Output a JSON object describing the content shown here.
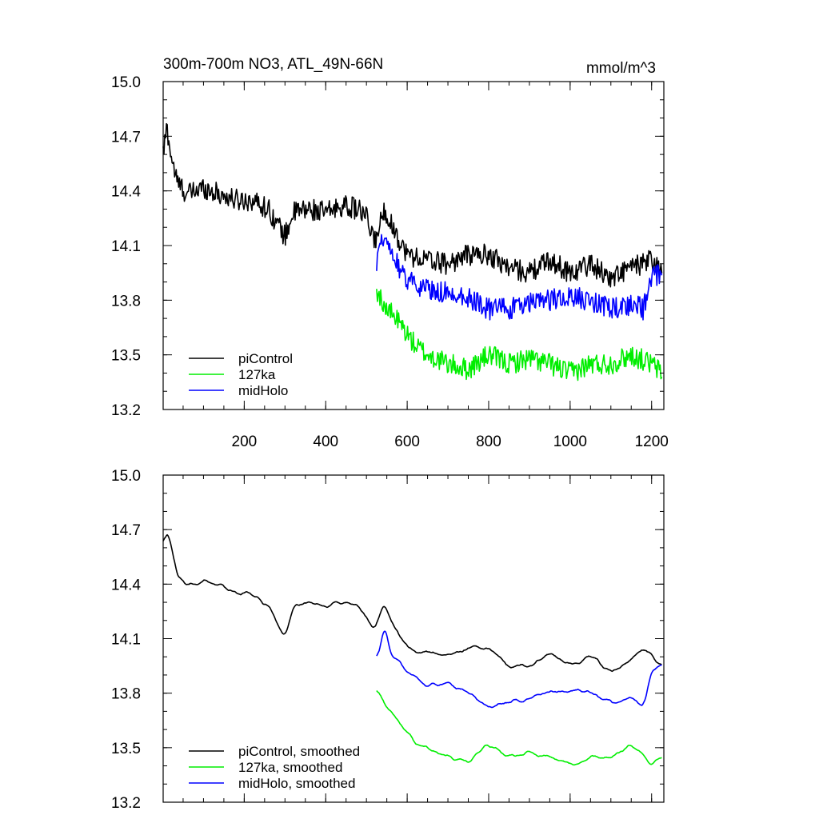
{
  "chart_data": [
    {
      "type": "line",
      "title": "300m-700m NO3, ATL_49N-66N",
      "units": "mmol/m^3",
      "xlim": [
        1,
        1230
      ],
      "ylim": [
        13.2,
        15.0
      ],
      "x_ticks": [
        200,
        400,
        600,
        800,
        1000,
        1200
      ],
      "y_ticks": [
        "15.0",
        "14.7",
        "14.4",
        "14.1",
        "13.8",
        "13.5",
        "13.2"
      ],
      "show_x_tick_labels": true,
      "legend_position": "bottom-left",
      "series": [
        {
          "name": "piControl",
          "color": "#000000",
          "smoothed": false,
          "anchors": [
            [
              1,
              14.6
            ],
            [
              10,
              14.75
            ],
            [
              20,
              14.6
            ],
            [
              35,
              14.45
            ],
            [
              60,
              14.38
            ],
            [
              100,
              14.42
            ],
            [
              140,
              14.38
            ],
            [
              180,
              14.35
            ],
            [
              220,
              14.35
            ],
            [
              260,
              14.3
            ],
            [
              300,
              14.15
            ],
            [
              320,
              14.28
            ],
            [
              360,
              14.3
            ],
            [
              400,
              14.28
            ],
            [
              440,
              14.32
            ],
            [
              480,
              14.3
            ],
            [
              500,
              14.25
            ],
            [
              520,
              14.12
            ],
            [
              545,
              14.3
            ],
            [
              560,
              14.22
            ],
            [
              600,
              14.05
            ],
            [
              650,
              14.02
            ],
            [
              700,
              14.0
            ],
            [
              750,
              14.05
            ],
            [
              800,
              14.05
            ],
            [
              850,
              13.98
            ],
            [
              900,
              13.95
            ],
            [
              950,
              14.02
            ],
            [
              1000,
              13.95
            ],
            [
              1050,
              14.0
            ],
            [
              1100,
              13.92
            ],
            [
              1150,
              13.98
            ],
            [
              1180,
              14.0
            ],
            [
              1200,
              14.02
            ],
            [
              1225,
              13.95
            ]
          ],
          "noise": 0.06
        },
        {
          "name": "127ka",
          "color": "#00ee00",
          "smoothed": false,
          "anchors": [
            [
              525,
              13.85
            ],
            [
              550,
              13.75
            ],
            [
              580,
              13.68
            ],
            [
              620,
              13.55
            ],
            [
              650,
              13.5
            ],
            [
              700,
              13.45
            ],
            [
              750,
              13.42
            ],
            [
              800,
              13.5
            ],
            [
              850,
              13.45
            ],
            [
              900,
              13.48
            ],
            [
              950,
              13.45
            ],
            [
              1000,
              13.4
            ],
            [
              1050,
              13.45
            ],
            [
              1100,
              13.45
            ],
            [
              1150,
              13.5
            ],
            [
              1200,
              13.45
            ],
            [
              1225,
              13.4
            ]
          ],
          "noise": 0.06
        },
        {
          "name": "midHolo",
          "color": "#0000ff",
          "smoothed": false,
          "anchors": [
            [
              525,
              13.98
            ],
            [
              545,
              14.2
            ],
            [
              560,
              14.05
            ],
            [
              600,
              13.92
            ],
            [
              650,
              13.85
            ],
            [
              700,
              13.85
            ],
            [
              750,
              13.82
            ],
            [
              800,
              13.75
            ],
            [
              850,
              13.75
            ],
            [
              900,
              13.78
            ],
            [
              950,
              13.8
            ],
            [
              1000,
              13.82
            ],
            [
              1050,
              13.8
            ],
            [
              1100,
              13.75
            ],
            [
              1150,
              13.78
            ],
            [
              1180,
              13.75
            ],
            [
              1200,
              13.92
            ],
            [
              1225,
              13.95
            ]
          ],
          "noise": 0.06
        }
      ]
    },
    {
      "type": "line",
      "title": "",
      "units": "",
      "xlim": [
        1,
        1230
      ],
      "ylim": [
        13.2,
        15.0
      ],
      "x_ticks": [
        200,
        400,
        600,
        800,
        1000,
        1200
      ],
      "y_ticks": [
        "15.0",
        "14.7",
        "14.4",
        "14.1",
        "13.8",
        "13.5",
        "13.2"
      ],
      "show_x_tick_labels": false,
      "legend_position": "bottom-left",
      "series": [
        {
          "name": "piControl, smoothed",
          "color": "#000000",
          "smoothed": true,
          "anchors": [
            [
              1,
              14.62
            ],
            [
              12,
              14.7
            ],
            [
              20,
              14.62
            ],
            [
              35,
              14.45
            ],
            [
              60,
              14.4
            ],
            [
              100,
              14.42
            ],
            [
              140,
              14.4
            ],
            [
              180,
              14.35
            ],
            [
              220,
              14.35
            ],
            [
              260,
              14.28
            ],
            [
              300,
              14.12
            ],
            [
              320,
              14.28
            ],
            [
              360,
              14.3
            ],
            [
              400,
              14.28
            ],
            [
              440,
              14.3
            ],
            [
              480,
              14.28
            ],
            [
              500,
              14.22
            ],
            [
              520,
              14.15
            ],
            [
              545,
              14.3
            ],
            [
              560,
              14.2
            ],
            [
              600,
              14.05
            ],
            [
              650,
              14.02
            ],
            [
              700,
              14.0
            ],
            [
              750,
              14.05
            ],
            [
              800,
              14.05
            ],
            [
              850,
              13.95
            ],
            [
              900,
              13.95
            ],
            [
              950,
              14.02
            ],
            [
              1000,
              13.95
            ],
            [
              1050,
              14.0
            ],
            [
              1100,
              13.92
            ],
            [
              1150,
              13.98
            ],
            [
              1180,
              14.05
            ],
            [
              1200,
              14.0
            ],
            [
              1225,
              13.95
            ]
          ],
          "noise": 0.03
        },
        {
          "name": "127ka, smoothed",
          "color": "#00ee00",
          "smoothed": true,
          "anchors": [
            [
              525,
              13.82
            ],
            [
              550,
              13.72
            ],
            [
              580,
              13.65
            ],
            [
              620,
              13.52
            ],
            [
              650,
              13.5
            ],
            [
              700,
              13.45
            ],
            [
              750,
              13.42
            ],
            [
              800,
              13.52
            ],
            [
              850,
              13.45
            ],
            [
              900,
              13.48
            ],
            [
              950,
              13.45
            ],
            [
              1000,
              13.4
            ],
            [
              1050,
              13.45
            ],
            [
              1100,
              13.45
            ],
            [
              1150,
              13.52
            ],
            [
              1200,
              13.42
            ],
            [
              1225,
              13.45
            ]
          ],
          "noise": 0.03
        },
        {
          "name": "midHolo, smoothed",
          "color": "#0000ff",
          "smoothed": true,
          "anchors": [
            [
              525,
              13.98
            ],
            [
              545,
              14.18
            ],
            [
              560,
              14.02
            ],
            [
              600,
              13.92
            ],
            [
              650,
              13.85
            ],
            [
              700,
              13.85
            ],
            [
              750,
              13.8
            ],
            [
              800,
              13.72
            ],
            [
              850,
              13.75
            ],
            [
              900,
              13.78
            ],
            [
              950,
              13.8
            ],
            [
              1000,
              13.82
            ],
            [
              1050,
              13.8
            ],
            [
              1100,
              13.75
            ],
            [
              1150,
              13.78
            ],
            [
              1180,
              13.72
            ],
            [
              1200,
              13.92
            ],
            [
              1225,
              13.95
            ]
          ],
          "noise": 0.03
        }
      ]
    }
  ]
}
